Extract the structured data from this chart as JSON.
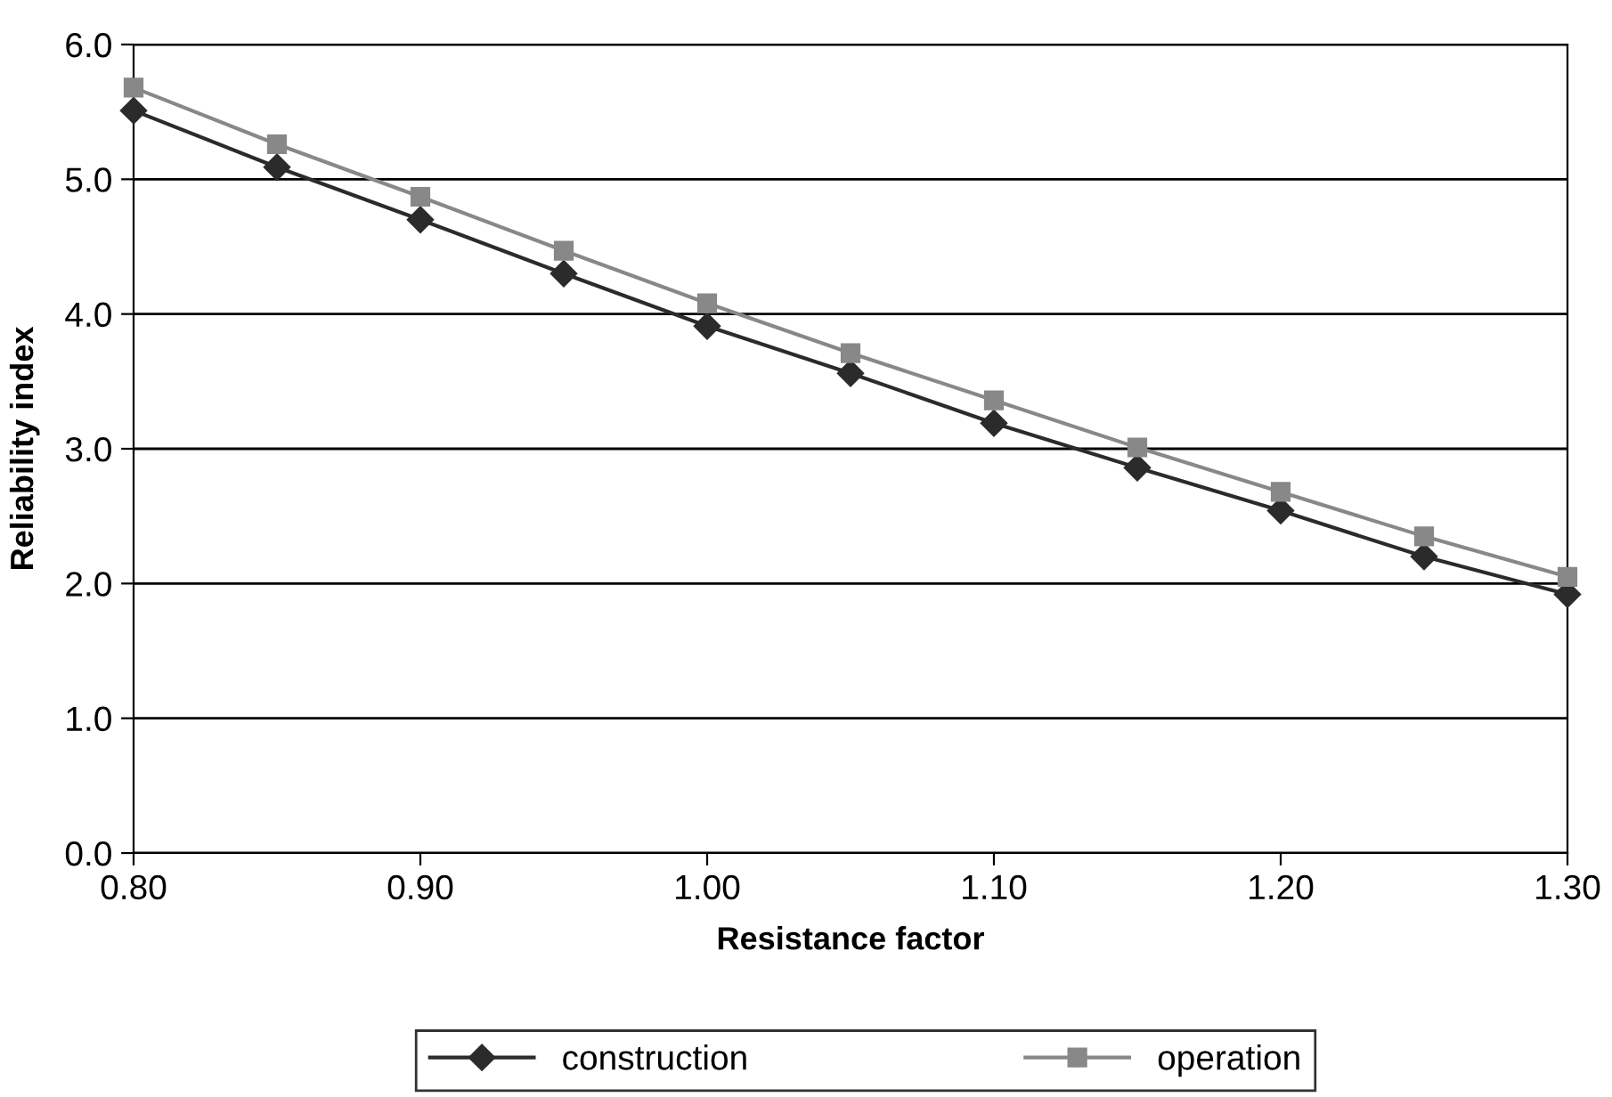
{
  "chart_data": {
    "type": "line",
    "xlabel": "Resistance factor",
    "ylabel": "Reliability index",
    "x": [
      0.8,
      0.85,
      0.9,
      0.95,
      1.0,
      1.05,
      1.1,
      1.15,
      1.2,
      1.25,
      1.3
    ],
    "series": [
      {
        "name": "construction",
        "color": "#2b2b2b",
        "marker": "diamond",
        "values": [
          5.51,
          5.09,
          4.7,
          4.3,
          3.91,
          3.56,
          3.19,
          2.86,
          2.54,
          2.2,
          1.92
        ]
      },
      {
        "name": "operation",
        "color": "#888888",
        "marker": "square",
        "values": [
          5.68,
          5.26,
          4.87,
          4.47,
          4.08,
          3.71,
          3.36,
          3.01,
          2.68,
          2.35,
          2.05
        ]
      }
    ],
    "xlim": [
      0.8,
      1.3
    ],
    "xticks": [
      {
        "value": 0.8,
        "label": "0.80"
      },
      {
        "value": 0.9,
        "label": "0.90"
      },
      {
        "value": 1.0,
        "label": "1.00"
      },
      {
        "value": 1.1,
        "label": "1.10"
      },
      {
        "value": 1.2,
        "label": "1.20"
      },
      {
        "value": 1.3,
        "label": "1.30"
      }
    ],
    "ylim": [
      0.0,
      6.0
    ],
    "yticks": [
      {
        "value": 0,
        "label": "0.0"
      },
      {
        "value": 1,
        "label": "1.0"
      },
      {
        "value": 2,
        "label": "2.0"
      },
      {
        "value": 3,
        "label": "3.0"
      },
      {
        "value": 4,
        "label": "4.0"
      },
      {
        "value": 5,
        "label": "5.0"
      },
      {
        "value": 6,
        "label": "6.0"
      }
    ],
    "grid": "y",
    "legend": "bottom",
    "line_style": "solid"
  }
}
